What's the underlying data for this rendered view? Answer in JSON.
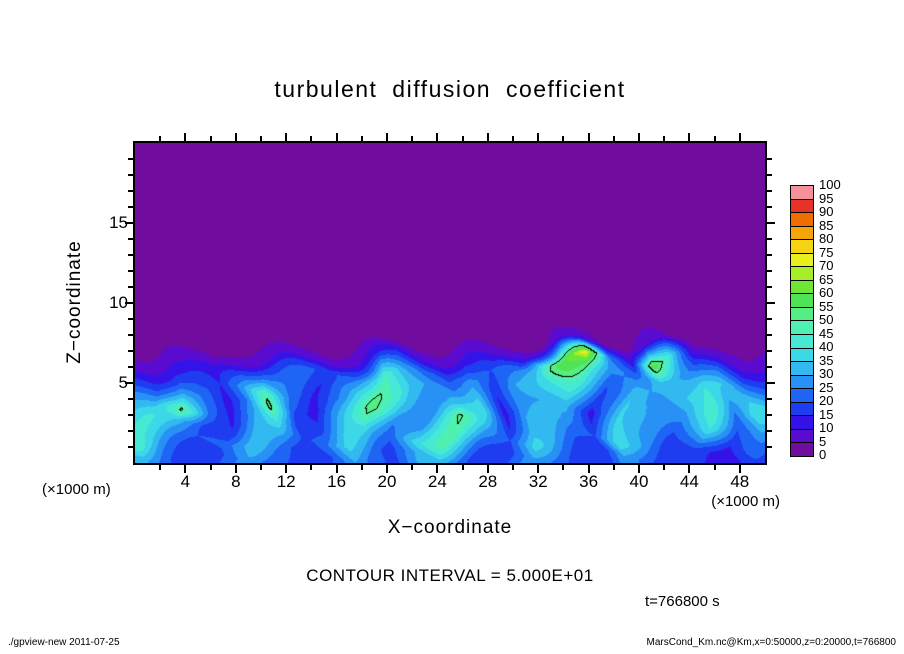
{
  "page": {
    "footer_left": "./gpview-new  2011-07-25",
    "footer_right": "MarsCond_Km.nc@Km,x=0:50000,z=0:20000,t=766800"
  },
  "chart_data": {
    "type": "heatmap",
    "title": "turbulent diffusion coefficient",
    "xlabel": "X−coordinate",
    "ylabel": "Z−coordinate",
    "x_unit_label": "(×1000 m)",
    "z_unit_label": "(×1000 m)",
    "contour_note": "CONTOUR INTERVAL = 5.000E+01",
    "time_label": "t=766800 s",
    "xlim": [
      0,
      50
    ],
    "zlim": [
      0,
      20
    ],
    "x_major_ticks": [
      4,
      8,
      12,
      16,
      20,
      24,
      28,
      32,
      36,
      40,
      44,
      48
    ],
    "x_minor_step": 2,
    "z_major_ticks": [
      5,
      10,
      15
    ],
    "z_minor_step": 1,
    "contour_level": 50,
    "colorbar": {
      "levels": [
        0,
        5,
        10,
        15,
        20,
        25,
        30,
        35,
        40,
        45,
        50,
        55,
        60,
        65,
        70,
        75,
        80,
        85,
        90,
        95,
        100
      ],
      "colors": [
        "#710d9e",
        "#5a0bd0",
        "#3513e8",
        "#1e3cf0",
        "#1e64f5",
        "#2891f5",
        "#32b9f0",
        "#3cd8e8",
        "#46ead2",
        "#50f0b0",
        "#55ee85",
        "#4fe455",
        "#6fe636",
        "#a8ee28",
        "#e8f01e",
        "#f5d214",
        "#f5a50a",
        "#f06e00",
        "#e63228",
        "#f5919b"
      ]
    },
    "field": {
      "background": 2,
      "x0": 1,
      "dx": 2,
      "z0": 7.5,
      "dz": 1,
      "rows": [
        [
          2,
          2,
          2,
          2,
          2,
          2,
          2,
          2,
          2,
          3,
          5,
          3,
          2,
          3,
          2,
          3,
          8,
          12,
          4,
          3,
          10,
          5,
          2,
          4,
          2
        ],
        [
          6,
          8,
          6,
          5,
          8,
          10,
          8,
          6,
          10,
          15,
          18,
          10,
          8,
          12,
          8,
          12,
          55,
          75,
          25,
          12,
          62,
          40,
          10,
          12,
          6
        ],
        [
          12,
          18,
          15,
          12,
          20,
          28,
          22,
          18,
          25,
          45,
          30,
          22,
          18,
          28,
          20,
          25,
          40,
          45,
          28,
          22,
          35,
          30,
          22,
          25,
          15
        ],
        [
          20,
          35,
          22,
          15,
          28,
          48,
          25,
          15,
          30,
          52,
          35,
          28,
          25,
          35,
          15,
          30,
          35,
          38,
          20,
          30,
          30,
          35,
          40,
          35,
          25
        ],
        [
          30,
          52,
          25,
          12,
          25,
          53,
          20,
          12,
          28,
          55,
          30,
          25,
          35,
          40,
          12,
          28,
          30,
          32,
          12,
          35,
          25,
          30,
          45,
          30,
          35
        ],
        [
          42,
          35,
          18,
          15,
          30,
          42,
          15,
          18,
          32,
          48,
          25,
          30,
          52,
          35,
          15,
          32,
          35,
          28,
          15,
          38,
          28,
          25,
          40,
          22,
          40
        ],
        [
          45,
          28,
          20,
          22,
          35,
          32,
          18,
          25,
          38,
          35,
          22,
          38,
          48,
          28,
          20,
          38,
          30,
          22,
          20,
          40,
          30,
          20,
          30,
          15,
          30
        ],
        [
          32,
          22,
          15,
          18,
          28,
          22,
          15,
          20,
          30,
          22,
          18,
          30,
          35,
          20,
          16,
          30,
          22,
          16,
          15,
          30,
          22,
          15,
          20,
          10,
          18
        ]
      ]
    }
  }
}
